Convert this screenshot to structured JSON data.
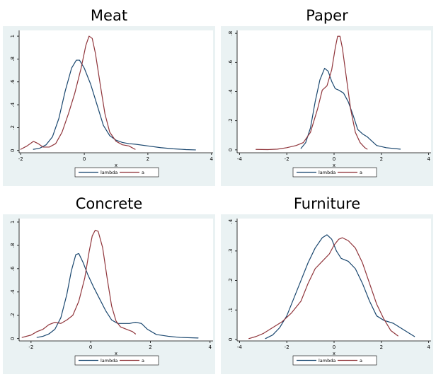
{
  "colors": {
    "lambda": "#1a476f",
    "a": "#90353b",
    "outer_bg": "#eaf2f3",
    "plot_bg": "#ffffff"
  },
  "chart_data": [
    {
      "type": "line",
      "title": "Meat",
      "xlabel": "x",
      "ylabel": "",
      "xlim": [
        -2.05,
        4.05
      ],
      "ylim": [
        -0.02,
        1.05
      ],
      "xticks": [
        -2,
        0,
        2,
        4
      ],
      "yticks": [
        0,
        0.2,
        0.4,
        0.6,
        0.8,
        1
      ],
      "ytick_labels": [
        "0",
        ".2",
        ".4",
        ".6",
        ".8",
        "1"
      ],
      "legend": {
        "position": "bottom",
        "entries": [
          "lambda",
          "a"
        ]
      },
      "series": [
        {
          "name": "lambda",
          "color_key": "lambda",
          "points": [
            [
              -1.6,
              0.01
            ],
            [
              -1.4,
              0.02
            ],
            [
              -1.2,
              0.05
            ],
            [
              -1.0,
              0.12
            ],
            [
              -0.8,
              0.28
            ],
            [
              -0.6,
              0.52
            ],
            [
              -0.4,
              0.72
            ],
            [
              -0.25,
              0.79
            ],
            [
              -0.15,
              0.79
            ],
            [
              0.0,
              0.72
            ],
            [
              0.2,
              0.58
            ],
            [
              0.4,
              0.4
            ],
            [
              0.6,
              0.22
            ],
            [
              0.8,
              0.13
            ],
            [
              1.0,
              0.09
            ],
            [
              1.2,
              0.07
            ],
            [
              1.4,
              0.06
            ],
            [
              1.6,
              0.055
            ],
            [
              2.0,
              0.04
            ],
            [
              2.4,
              0.025
            ],
            [
              2.8,
              0.015
            ],
            [
              3.2,
              0.008
            ],
            [
              3.5,
              0.005
            ]
          ]
        },
        {
          "name": "a",
          "color_key": "a",
          "points": [
            [
              -2.0,
              0.01
            ],
            [
              -1.8,
              0.04
            ],
            [
              -1.6,
              0.08
            ],
            [
              -1.45,
              0.06
            ],
            [
              -1.3,
              0.03
            ],
            [
              -1.1,
              0.03
            ],
            [
              -0.9,
              0.06
            ],
            [
              -0.7,
              0.16
            ],
            [
              -0.5,
              0.32
            ],
            [
              -0.3,
              0.5
            ],
            [
              -0.1,
              0.72
            ],
            [
              0.05,
              0.92
            ],
            [
              0.15,
              1.0
            ],
            [
              0.25,
              0.98
            ],
            [
              0.35,
              0.85
            ],
            [
              0.5,
              0.58
            ],
            [
              0.65,
              0.32
            ],
            [
              0.8,
              0.16
            ],
            [
              1.0,
              0.08
            ],
            [
              1.2,
              0.05
            ],
            [
              1.4,
              0.04
            ],
            [
              1.6,
              0.01
            ]
          ]
        }
      ]
    },
    {
      "type": "line",
      "title": "Paper",
      "xlabel": "x",
      "ylabel": "",
      "xlim": [
        -4.1,
        4.1
      ],
      "ylim": [
        -0.02,
        0.82
      ],
      "xticks": [
        -4,
        -2,
        0,
        2,
        4
      ],
      "yticks": [
        0,
        0.2,
        0.4,
        0.6,
        0.8
      ],
      "ytick_labels": [
        "0",
        ".2",
        ".4",
        ".6",
        ".8"
      ],
      "legend": {
        "position": "bottom",
        "entries": [
          "lambda",
          "a"
        ]
      },
      "series": [
        {
          "name": "lambda",
          "color_key": "lambda",
          "points": [
            [
              -1.4,
              0.01
            ],
            [
              -1.2,
              0.05
            ],
            [
              -1.0,
              0.15
            ],
            [
              -0.8,
              0.33
            ],
            [
              -0.6,
              0.48
            ],
            [
              -0.4,
              0.56
            ],
            [
              -0.25,
              0.54
            ],
            [
              -0.1,
              0.47
            ],
            [
              0.05,
              0.42
            ],
            [
              0.2,
              0.41
            ],
            [
              0.4,
              0.39
            ],
            [
              0.6,
              0.33
            ],
            [
              0.8,
              0.24
            ],
            [
              1.0,
              0.14
            ],
            [
              1.2,
              0.11
            ],
            [
              1.4,
              0.09
            ],
            [
              1.6,
              0.06
            ],
            [
              1.8,
              0.03
            ],
            [
              2.2,
              0.015
            ],
            [
              2.8,
              0.005
            ]
          ]
        },
        {
          "name": "a",
          "color_key": "a",
          "points": [
            [
              -3.3,
              0.003
            ],
            [
              -2.8,
              0.002
            ],
            [
              -2.4,
              0.005
            ],
            [
              -2.0,
              0.015
            ],
            [
              -1.6,
              0.03
            ],
            [
              -1.3,
              0.05
            ],
            [
              -1.0,
              0.12
            ],
            [
              -0.7,
              0.28
            ],
            [
              -0.5,
              0.41
            ],
            [
              -0.3,
              0.44
            ],
            [
              -0.1,
              0.55
            ],
            [
              0.05,
              0.7
            ],
            [
              0.15,
              0.78
            ],
            [
              0.25,
              0.78
            ],
            [
              0.35,
              0.7
            ],
            [
              0.5,
              0.52
            ],
            [
              0.7,
              0.28
            ],
            [
              0.9,
              0.12
            ],
            [
              1.1,
              0.05
            ],
            [
              1.3,
              0.015
            ],
            [
              1.4,
              0.005
            ]
          ]
        }
      ]
    },
    {
      "type": "line",
      "title": "Concrete",
      "xlabel": "x",
      "ylabel": "",
      "xlim": [
        -2.4,
        4.1
      ],
      "ylim": [
        -0.02,
        1.03
      ],
      "xticks": [
        -2,
        0,
        2,
        4
      ],
      "yticks": [
        0,
        0.2,
        0.4,
        0.6,
        0.8,
        1
      ],
      "ytick_labels": [
        "0",
        ".2",
        ".4",
        ".6",
        ".8",
        "1"
      ],
      "legend": {
        "position": "bottom",
        "entries": [
          "lambda",
          "a"
        ]
      },
      "series": [
        {
          "name": "lambda",
          "color_key": "lambda",
          "points": [
            [
              -1.8,
              0.01
            ],
            [
              -1.6,
              0.02
            ],
            [
              -1.4,
              0.04
            ],
            [
              -1.2,
              0.08
            ],
            [
              -1.0,
              0.18
            ],
            [
              -0.8,
              0.38
            ],
            [
              -0.65,
              0.58
            ],
            [
              -0.5,
              0.72
            ],
            [
              -0.4,
              0.73
            ],
            [
              -0.25,
              0.65
            ],
            [
              -0.1,
              0.55
            ],
            [
              0.1,
              0.44
            ],
            [
              0.3,
              0.34
            ],
            [
              0.5,
              0.24
            ],
            [
              0.7,
              0.16
            ],
            [
              0.9,
              0.13
            ],
            [
              1.1,
              0.13
            ],
            [
              1.3,
              0.13
            ],
            [
              1.5,
              0.14
            ],
            [
              1.7,
              0.13
            ],
            [
              1.9,
              0.08
            ],
            [
              2.2,
              0.035
            ],
            [
              2.6,
              0.02
            ],
            [
              3.0,
              0.01
            ],
            [
              3.6,
              0.005
            ]
          ]
        },
        {
          "name": "a",
          "color_key": "a",
          "points": [
            [
              -2.3,
              0.01
            ],
            [
              -2.0,
              0.03
            ],
            [
              -1.8,
              0.06
            ],
            [
              -1.6,
              0.08
            ],
            [
              -1.4,
              0.12
            ],
            [
              -1.2,
              0.14
            ],
            [
              -1.0,
              0.13
            ],
            [
              -0.8,
              0.16
            ],
            [
              -0.6,
              0.2
            ],
            [
              -0.4,
              0.32
            ],
            [
              -0.2,
              0.52
            ],
            [
              -0.05,
              0.75
            ],
            [
              0.05,
              0.88
            ],
            [
              0.15,
              0.93
            ],
            [
              0.25,
              0.92
            ],
            [
              0.4,
              0.78
            ],
            [
              0.55,
              0.52
            ],
            [
              0.7,
              0.28
            ],
            [
              0.85,
              0.15
            ],
            [
              1.0,
              0.1
            ],
            [
              1.2,
              0.08
            ],
            [
              1.4,
              0.06
            ],
            [
              1.5,
              0.04
            ]
          ]
        }
      ]
    },
    {
      "type": "line",
      "title": "Furniture",
      "xlabel": "x",
      "ylabel": "",
      "xlim": [
        -4.1,
        4.1
      ],
      "ylim": [
        -0.005,
        0.41
      ],
      "xticks": [
        -4,
        -2,
        0,
        2,
        4
      ],
      "yticks": [
        0,
        0.1,
        0.2,
        0.3,
        0.4
      ],
      "ytick_labels": [
        "0",
        ".1",
        ".2",
        ".3",
        ".4"
      ],
      "legend": {
        "position": "bottom",
        "entries": [
          "lambda",
          "a"
        ]
      },
      "series": [
        {
          "name": "lambda",
          "color_key": "lambda",
          "points": [
            [
              -2.9,
              0.003
            ],
            [
              -2.6,
              0.015
            ],
            [
              -2.3,
              0.04
            ],
            [
              -2.0,
              0.08
            ],
            [
              -1.7,
              0.14
            ],
            [
              -1.4,
              0.2
            ],
            [
              -1.1,
              0.26
            ],
            [
              -0.8,
              0.31
            ],
            [
              -0.5,
              0.345
            ],
            [
              -0.3,
              0.355
            ],
            [
              -0.1,
              0.34
            ],
            [
              0.1,
              0.3
            ],
            [
              0.3,
              0.275
            ],
            [
              0.6,
              0.265
            ],
            [
              0.9,
              0.24
            ],
            [
              1.2,
              0.19
            ],
            [
              1.5,
              0.13
            ],
            [
              1.8,
              0.08
            ],
            [
              2.1,
              0.065
            ],
            [
              2.5,
              0.055
            ],
            [
              2.9,
              0.035
            ],
            [
              3.2,
              0.02
            ],
            [
              3.4,
              0.01
            ]
          ]
        },
        {
          "name": "a",
          "color_key": "a",
          "points": [
            [
              -3.6,
              0.003
            ],
            [
              -3.3,
              0.01
            ],
            [
              -3.0,
              0.02
            ],
            [
              -2.6,
              0.04
            ],
            [
              -2.2,
              0.06
            ],
            [
              -1.8,
              0.09
            ],
            [
              -1.4,
              0.13
            ],
            [
              -1.1,
              0.19
            ],
            [
              -0.8,
              0.24
            ],
            [
              -0.5,
              0.265
            ],
            [
              -0.2,
              0.29
            ],
            [
              0.0,
              0.32
            ],
            [
              0.2,
              0.34
            ],
            [
              0.35,
              0.345
            ],
            [
              0.6,
              0.335
            ],
            [
              0.9,
              0.31
            ],
            [
              1.2,
              0.26
            ],
            [
              1.5,
              0.19
            ],
            [
              1.8,
              0.12
            ],
            [
              2.1,
              0.07
            ],
            [
              2.4,
              0.03
            ],
            [
              2.7,
              0.012
            ]
          ]
        }
      ]
    }
  ]
}
